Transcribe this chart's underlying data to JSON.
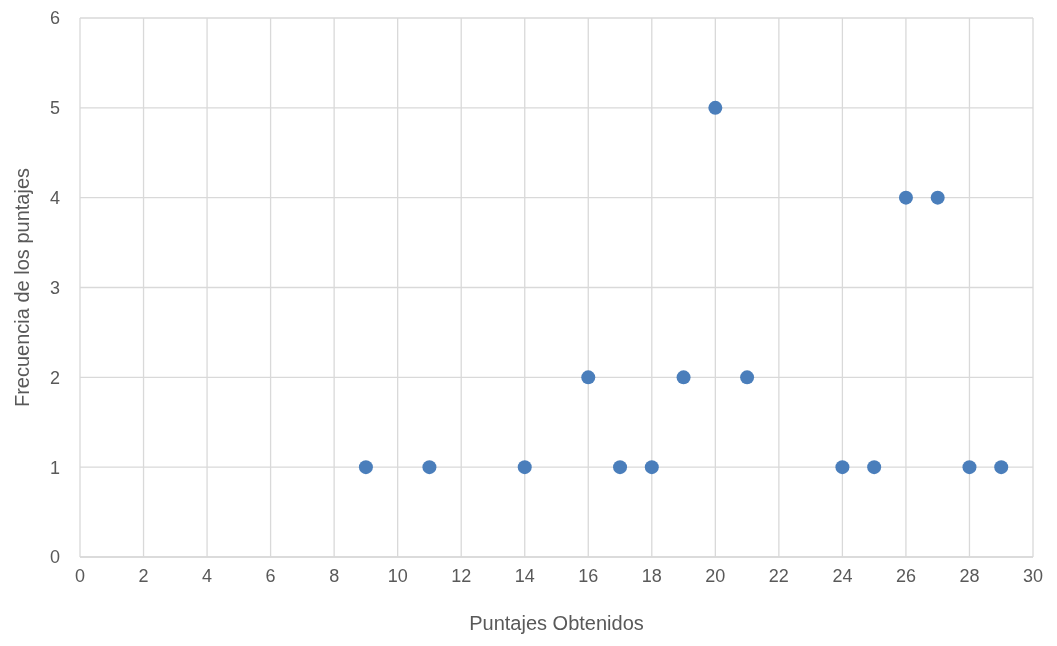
{
  "chart_data": {
    "type": "scatter",
    "xlabel": "Puntajes Obtenidos",
    "ylabel": "Frecuencia de los puntajes",
    "x": [
      9,
      11,
      14,
      16,
      17,
      18,
      19,
      20,
      21,
      24,
      25,
      26,
      27,
      28,
      29
    ],
    "series": [
      {
        "color": "#4a7ebb",
        "values": [
          1,
          1,
          1,
          2,
          1,
          1,
          2,
          5,
          2,
          1,
          1,
          4,
          4,
          1,
          1
        ]
      }
    ],
    "xlim": [
      0,
      30
    ],
    "xticks": [
      0,
      2,
      4,
      6,
      8,
      10,
      12,
      14,
      16,
      18,
      20,
      22,
      24,
      26,
      28,
      30
    ],
    "ylim": [
      0,
      6
    ],
    "yticks": [
      0,
      1,
      2,
      3,
      4,
      5,
      6
    ],
    "grid": true,
    "marker": "circle",
    "legend": false
  }
}
